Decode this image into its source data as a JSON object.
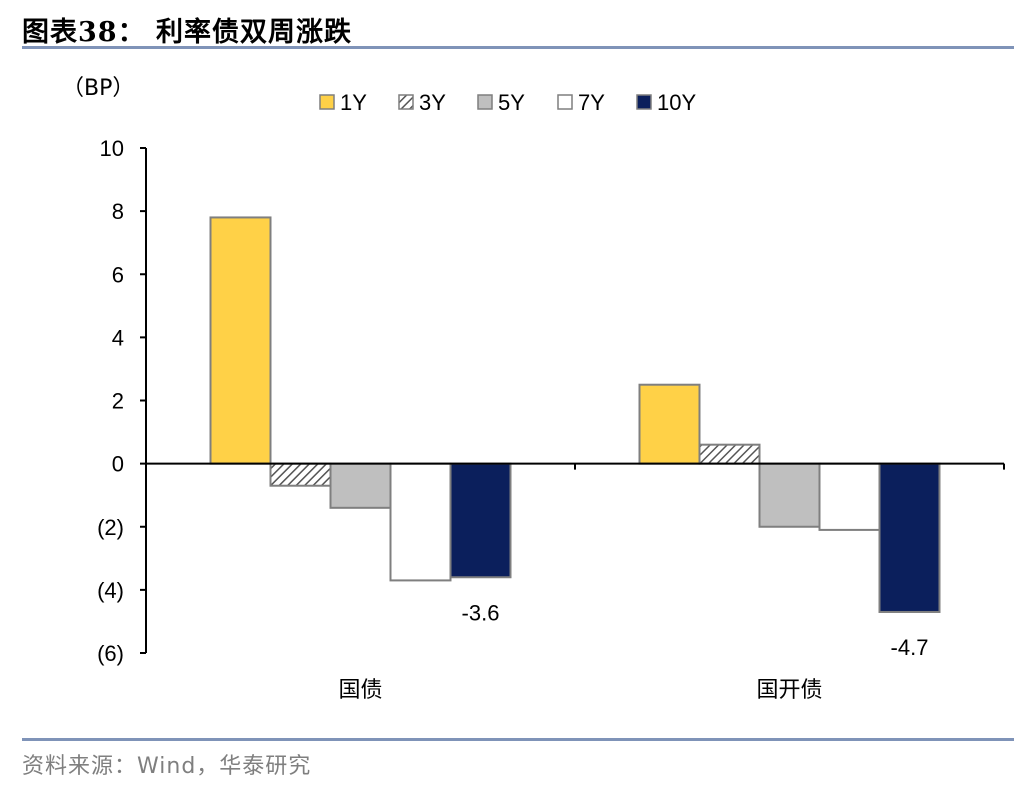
{
  "header": {
    "title": "图表38： 利率债双周涨跌"
  },
  "footer": {
    "source": "资料来源：Wind，华泰研究"
  },
  "chart_data": {
    "type": "bar",
    "title": "利率债双周涨跌",
    "unit": "（BP）",
    "categories": [
      "国债",
      "国开债"
    ],
    "series": [
      {
        "name": "1Y",
        "values": [
          7.8,
          2.5
        ],
        "color": "#ffd147",
        "pattern": "solid"
      },
      {
        "name": "3Y",
        "values": [
          -0.7,
          0.6
        ],
        "color": "#ffffff",
        "pattern": "hatch"
      },
      {
        "name": "5Y",
        "values": [
          -1.4,
          -2.0
        ],
        "color": "#bfbfbf",
        "pattern": "solid"
      },
      {
        "name": "7Y",
        "values": [
          -3.7,
          -2.1
        ],
        "color": "#ffffff",
        "pattern": "solid"
      },
      {
        "name": "10Y",
        "values": [
          -3.6,
          -4.7
        ],
        "color": "#0b1f5c",
        "pattern": "solid"
      }
    ],
    "data_labels": [
      {
        "series": "10Y",
        "category": "国债",
        "text": "-3.6"
      },
      {
        "series": "10Y",
        "category": "国开债",
        "text": "-4.7"
      }
    ],
    "ylim": [
      -6,
      10
    ],
    "yticks": [
      10,
      8,
      6,
      4,
      2,
      0,
      -2,
      -4,
      -6
    ],
    "ytick_labels": [
      "10",
      "8",
      "6",
      "4",
      "2",
      "0",
      "(2)",
      "(4)",
      "(6)"
    ],
    "legend_position": "top",
    "grid": false,
    "xlabel": "",
    "ylabel": ""
  }
}
